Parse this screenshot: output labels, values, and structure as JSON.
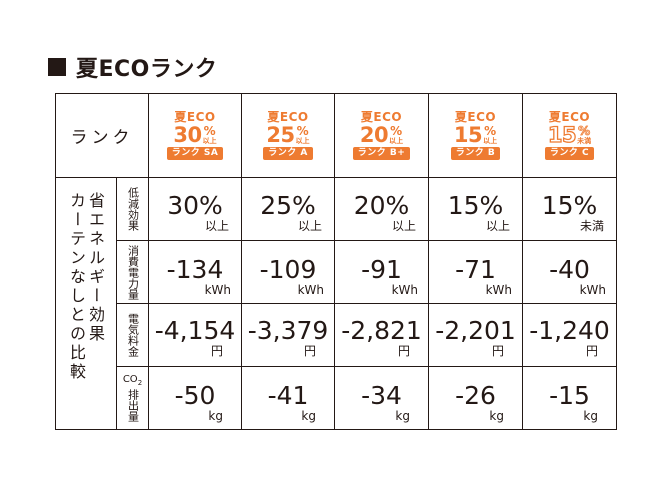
{
  "title": "夏ECOランク",
  "header": {
    "rank_label": "ランク",
    "badges": [
      {
        "top": "夏ECO",
        "pct": "30",
        "pct_sign": "%",
        "qualifier": "以上",
        "rank": "ランク SA",
        "outline": false
      },
      {
        "top": "夏ECO",
        "pct": "25",
        "pct_sign": "%",
        "qualifier": "以上",
        "rank": "ランク A",
        "outline": false
      },
      {
        "top": "夏ECO",
        "pct": "20",
        "pct_sign": "%",
        "qualifier": "以上",
        "rank": "ランク B+",
        "outline": false
      },
      {
        "top": "夏ECO",
        "pct": "15",
        "pct_sign": "%",
        "qualifier": "以上",
        "rank": "ランク B",
        "outline": false
      },
      {
        "top": "夏ECO",
        "pct": "15",
        "pct_sign": "%",
        "qualifier": "未満",
        "rank": "ランク C",
        "outline": true
      }
    ]
  },
  "side_label": "省エネルギー効果\nカーテンなしとの比較",
  "rows": [
    {
      "label": "低減効果",
      "kind": "pct",
      "values": [
        {
          "value": "30%",
          "unit": "以上"
        },
        {
          "value": "25%",
          "unit": "以上"
        },
        {
          "value": "20%",
          "unit": "以上"
        },
        {
          "value": "15%",
          "unit": "以上"
        },
        {
          "value": "15%",
          "unit": "未満"
        }
      ]
    },
    {
      "label": "消費電力量",
      "kind": "kwh",
      "values": [
        {
          "value": "-134",
          "unit": "kWh"
        },
        {
          "value": "-109",
          "unit": "kWh"
        },
        {
          "value": "-91",
          "unit": "kWh"
        },
        {
          "value": "-71",
          "unit": "kWh"
        },
        {
          "value": "-40",
          "unit": "kWh"
        }
      ]
    },
    {
      "label": "電気料金",
      "kind": "yen",
      "values": [
        {
          "value": "-4,154",
          "unit": "円"
        },
        {
          "value": "-3,379",
          "unit": "円"
        },
        {
          "value": "-2,821",
          "unit": "円"
        },
        {
          "value": "-2,201",
          "unit": "円"
        },
        {
          "value": "-1,240",
          "unit": "円"
        }
      ]
    },
    {
      "label_top": "CO",
      "label_sub": "2",
      "label_bottom": "排出量",
      "kind": "kg",
      "values": [
        {
          "value": "-50",
          "unit": "kg"
        },
        {
          "value": "-41",
          "unit": "kg"
        },
        {
          "value": "-34",
          "unit": "kg"
        },
        {
          "value": "-26",
          "unit": "kg"
        },
        {
          "value": "-15",
          "unit": "kg"
        }
      ]
    }
  ],
  "colors": {
    "accent": "#ee7b31",
    "text": "#231815"
  }
}
